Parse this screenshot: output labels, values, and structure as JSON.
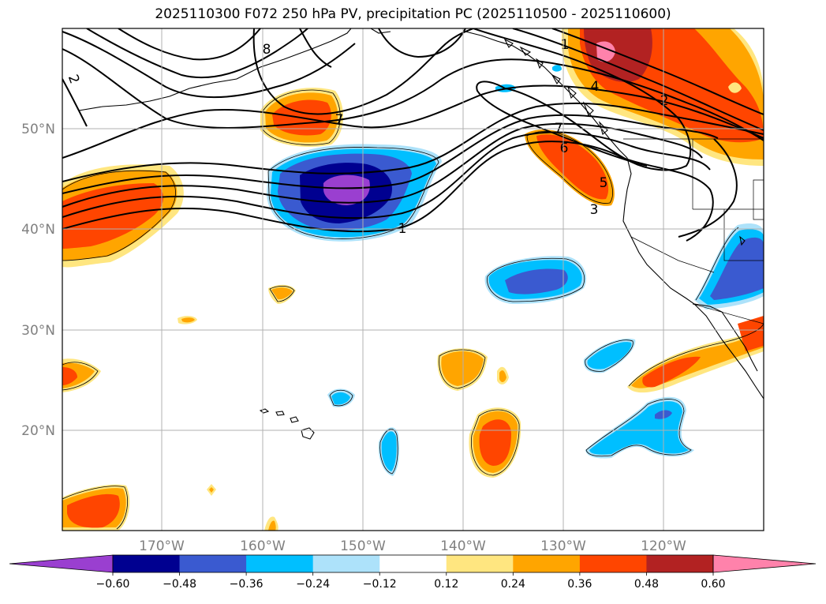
{
  "title": "2025110300 F072 250 hPa PV, precipitation PC (2025110500 - 2025110600)",
  "chart_data": {
    "type": "map",
    "x_axis": {
      "ticks": [
        "170°W",
        "160°W",
        "150°W",
        "140°W",
        "130°W",
        "120°W"
      ],
      "range_deg": [
        -180,
        -110
      ]
    },
    "y_axis": {
      "ticks": [
        "20°N",
        "30°N",
        "40°N",
        "50°N"
      ],
      "range_deg": [
        10,
        60
      ]
    },
    "grid": true,
    "pv_contour_labels": [
      "8",
      "2",
      "7",
      "1",
      "1",
      "4",
      "2",
      "7",
      "6",
      "5",
      "3"
    ],
    "colorbar": {
      "levels": [
        "−0.60",
        "−0.48",
        "−0.36",
        "−0.24",
        "−0.12",
        "0.12",
        "0.24",
        "0.36",
        "0.48",
        "0.60"
      ],
      "colors": [
        "#9a3fd0",
        "#000090",
        "#3a5ad0",
        "#00bfff",
        "#ade2fa",
        "#ffffff",
        "#ffe680",
        "#ffa500",
        "#ff4500",
        "#b22222",
        "#ff82ab"
      ],
      "extend": "both"
    }
  }
}
